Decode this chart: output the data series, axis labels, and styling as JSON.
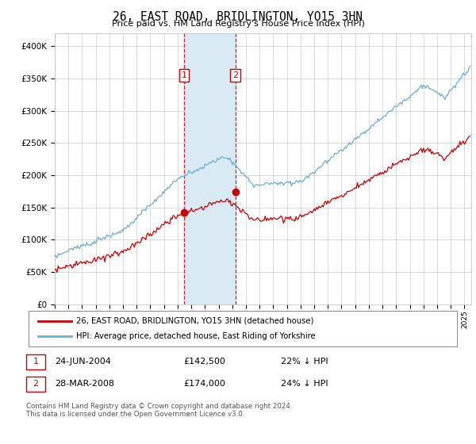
{
  "title": "26, EAST ROAD, BRIDLINGTON, YO15 3HN",
  "subtitle": "Price paid vs. HM Land Registry's House Price Index (HPI)",
  "legend_line1": "26, EAST ROAD, BRIDLINGTON, YO15 3HN (detached house)",
  "legend_line2": "HPI: Average price, detached house, East Riding of Yorkshire",
  "transaction1_date": "24-JUN-2004",
  "transaction1_price": "£142,500",
  "transaction1_hpi": "22% ↓ HPI",
  "transaction2_date": "28-MAR-2008",
  "transaction2_price": "£174,000",
  "transaction2_hpi": "24% ↓ HPI",
  "footnote": "Contains HM Land Registry data © Crown copyright and database right 2024.\nThis data is licensed under the Open Government Licence v3.0.",
  "hpi_color": "#6baed6",
  "price_color": "#cc0000",
  "span_color": "#daeaf5",
  "marker1_x": 2004.48,
  "marker2_x": 2008.23,
  "marker1_price": 142500,
  "marker2_price": 174000,
  "vline1_x": 2004.48,
  "vline2_x": 2008.23,
  "ylim_min": 0,
  "ylim_max": 420000,
  "xlim_min": 1995.0,
  "xlim_max": 2025.5,
  "background_color": "#ffffff",
  "grid_color": "#cccccc"
}
